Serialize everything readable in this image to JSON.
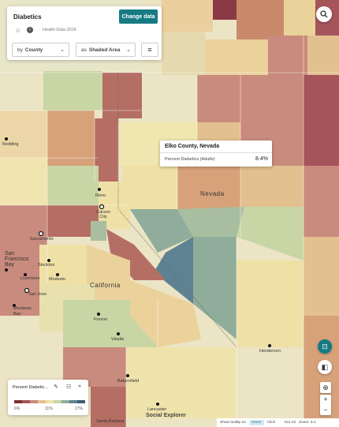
{
  "panel": {
    "title": "Diabetics",
    "change_button": "Change data",
    "dataset": "Health Data 2016",
    "by_prefix": "by",
    "by_value": "County",
    "as_prefix": "as",
    "as_value": "Shaded Area"
  },
  "tooltip": {
    "title": "Elko County, Nevada",
    "label": "Percent Diabetics (Adults)",
    "value": "8.4%"
  },
  "legend": {
    "title": "Percent Diabetic...",
    "ticks": [
      "6%",
      "11%",
      "17%"
    ],
    "colors": [
      "#7a2e33",
      "#a5545a",
      "#c98b7d",
      "#e3c08f",
      "#efe1a6",
      "#c8d5a4",
      "#8fad9a",
      "#5e8291",
      "#3a5e73"
    ]
  },
  "labels": {
    "states": [
      "Nevada",
      "California"
    ],
    "cities": [
      "Redding",
      "Carson City",
      "Sacramento",
      "San Francisco Bay",
      "Stockton",
      "Modesto",
      "Livermore",
      "San Jose",
      "Monterey Bay",
      "Fresno",
      "Visalia",
      "Bakersfield",
      "Henderson",
      "Lancaster",
      "Santa Barbara",
      "Reno"
    ]
  },
  "status": {
    "tooltip_label": "Show tooltip on",
    "hover": "Hover",
    "click": "Click",
    "scale": "511 mi",
    "zoom": "Zoom: 6.1"
  },
  "watermark": "Social Explorer",
  "colors": {
    "accent": "#177b83",
    "highlight_county": "#8fa88f"
  }
}
